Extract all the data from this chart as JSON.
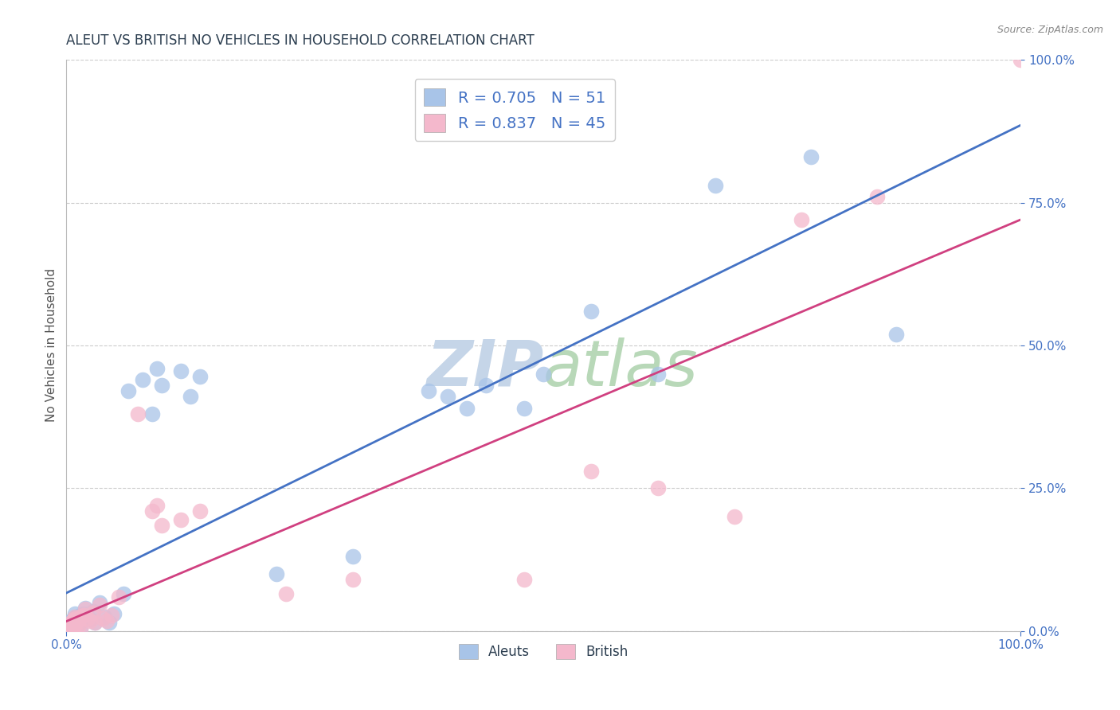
{
  "title": "ALEUT VS BRITISH NO VEHICLES IN HOUSEHOLD CORRELATION CHART",
  "source": "Source: ZipAtlas.com",
  "ylabel": "No Vehicles in Household",
  "xlim": [
    0.0,
    1.0
  ],
  "ylim": [
    0.0,
    1.0
  ],
  "xtick_positions": [
    0.0,
    1.0
  ],
  "xtick_labels": [
    "0.0%",
    "100.0%"
  ],
  "ytick_values": [
    0.0,
    0.25,
    0.5,
    0.75,
    1.0
  ],
  "ytick_labels": [
    "0.0%",
    "25.0%",
    "50.0%",
    "75.0%",
    "100.0%"
  ],
  "aleut_R": 0.705,
  "aleut_N": 51,
  "british_R": 0.837,
  "british_N": 45,
  "aleut_color": "#a8c4e8",
  "british_color": "#f4b8cc",
  "aleut_line_color": "#4472c4",
  "british_line_color": "#d04080",
  "title_color": "#2c3e50",
  "tick_color": "#4472c4",
  "ylabel_color": "#555555",
  "source_color": "#888888",
  "watermark_zip_color": "#c5d5e8",
  "watermark_atlas_color": "#b8d8b8",
  "grid_color": "#cccccc",
  "background_color": "#ffffff",
  "aleuts_scatter": [
    [
      0.003,
      0.005
    ],
    [
      0.004,
      0.008
    ],
    [
      0.005,
      0.012
    ],
    [
      0.005,
      0.018
    ],
    [
      0.006,
      0.005
    ],
    [
      0.006,
      0.015
    ],
    [
      0.007,
      0.01
    ],
    [
      0.007,
      0.02
    ],
    [
      0.008,
      0.008
    ],
    [
      0.008,
      0.022
    ],
    [
      0.009,
      0.012
    ],
    [
      0.009,
      0.03
    ],
    [
      0.01,
      0.015
    ],
    [
      0.01,
      0.025
    ],
    [
      0.011,
      0.018
    ],
    [
      0.012,
      0.01
    ],
    [
      0.013,
      0.022
    ],
    [
      0.015,
      0.028
    ],
    [
      0.015,
      0.005
    ],
    [
      0.018,
      0.03
    ],
    [
      0.02,
      0.04
    ],
    [
      0.022,
      0.025
    ],
    [
      0.025,
      0.02
    ],
    [
      0.028,
      0.035
    ],
    [
      0.03,
      0.015
    ],
    [
      0.035,
      0.05
    ],
    [
      0.04,
      0.025
    ],
    [
      0.045,
      0.015
    ],
    [
      0.05,
      0.03
    ],
    [
      0.06,
      0.065
    ],
    [
      0.065,
      0.42
    ],
    [
      0.08,
      0.44
    ],
    [
      0.09,
      0.38
    ],
    [
      0.095,
      0.46
    ],
    [
      0.1,
      0.43
    ],
    [
      0.12,
      0.455
    ],
    [
      0.13,
      0.41
    ],
    [
      0.14,
      0.445
    ],
    [
      0.22,
      0.1
    ],
    [
      0.3,
      0.13
    ],
    [
      0.38,
      0.42
    ],
    [
      0.4,
      0.41
    ],
    [
      0.42,
      0.39
    ],
    [
      0.44,
      0.43
    ],
    [
      0.48,
      0.39
    ],
    [
      0.5,
      0.45
    ],
    [
      0.55,
      0.56
    ],
    [
      0.62,
      0.45
    ],
    [
      0.68,
      0.78
    ],
    [
      0.78,
      0.83
    ],
    [
      0.87,
      0.52
    ]
  ],
  "british_scatter": [
    [
      0.003,
      0.002
    ],
    [
      0.004,
      0.005
    ],
    [
      0.005,
      0.008
    ],
    [
      0.005,
      0.015
    ],
    [
      0.006,
      0.003
    ],
    [
      0.006,
      0.012
    ],
    [
      0.007,
      0.007
    ],
    [
      0.007,
      0.018
    ],
    [
      0.008,
      0.01
    ],
    [
      0.008,
      0.02
    ],
    [
      0.009,
      0.015
    ],
    [
      0.009,
      0.025
    ],
    [
      0.01,
      0.012
    ],
    [
      0.01,
      0.022
    ],
    [
      0.011,
      0.018
    ],
    [
      0.012,
      0.008
    ],
    [
      0.013,
      0.02
    ],
    [
      0.015,
      0.025
    ],
    [
      0.015,
      0.004
    ],
    [
      0.018,
      0.028
    ],
    [
      0.02,
      0.038
    ],
    [
      0.022,
      0.022
    ],
    [
      0.025,
      0.018
    ],
    [
      0.028,
      0.032
    ],
    [
      0.03,
      0.015
    ],
    [
      0.035,
      0.045
    ],
    [
      0.038,
      0.022
    ],
    [
      0.042,
      0.018
    ],
    [
      0.047,
      0.028
    ],
    [
      0.055,
      0.06
    ],
    [
      0.075,
      0.38
    ],
    [
      0.09,
      0.21
    ],
    [
      0.095,
      0.22
    ],
    [
      0.1,
      0.185
    ],
    [
      0.12,
      0.195
    ],
    [
      0.14,
      0.21
    ],
    [
      0.23,
      0.065
    ],
    [
      0.3,
      0.09
    ],
    [
      0.48,
      0.09
    ],
    [
      0.55,
      0.28
    ],
    [
      0.62,
      0.25
    ],
    [
      0.7,
      0.2
    ],
    [
      0.77,
      0.72
    ],
    [
      0.85,
      0.76
    ],
    [
      1.0,
      1.0
    ]
  ],
  "marker_size": 200,
  "line_width": 2.0,
  "title_fontsize": 12,
  "tick_fontsize": 11,
  "ylabel_fontsize": 11,
  "legend_fontsize": 14,
  "source_fontsize": 9,
  "watermark_zip_fontsize": 58,
  "watermark_atlas_fontsize": 58
}
